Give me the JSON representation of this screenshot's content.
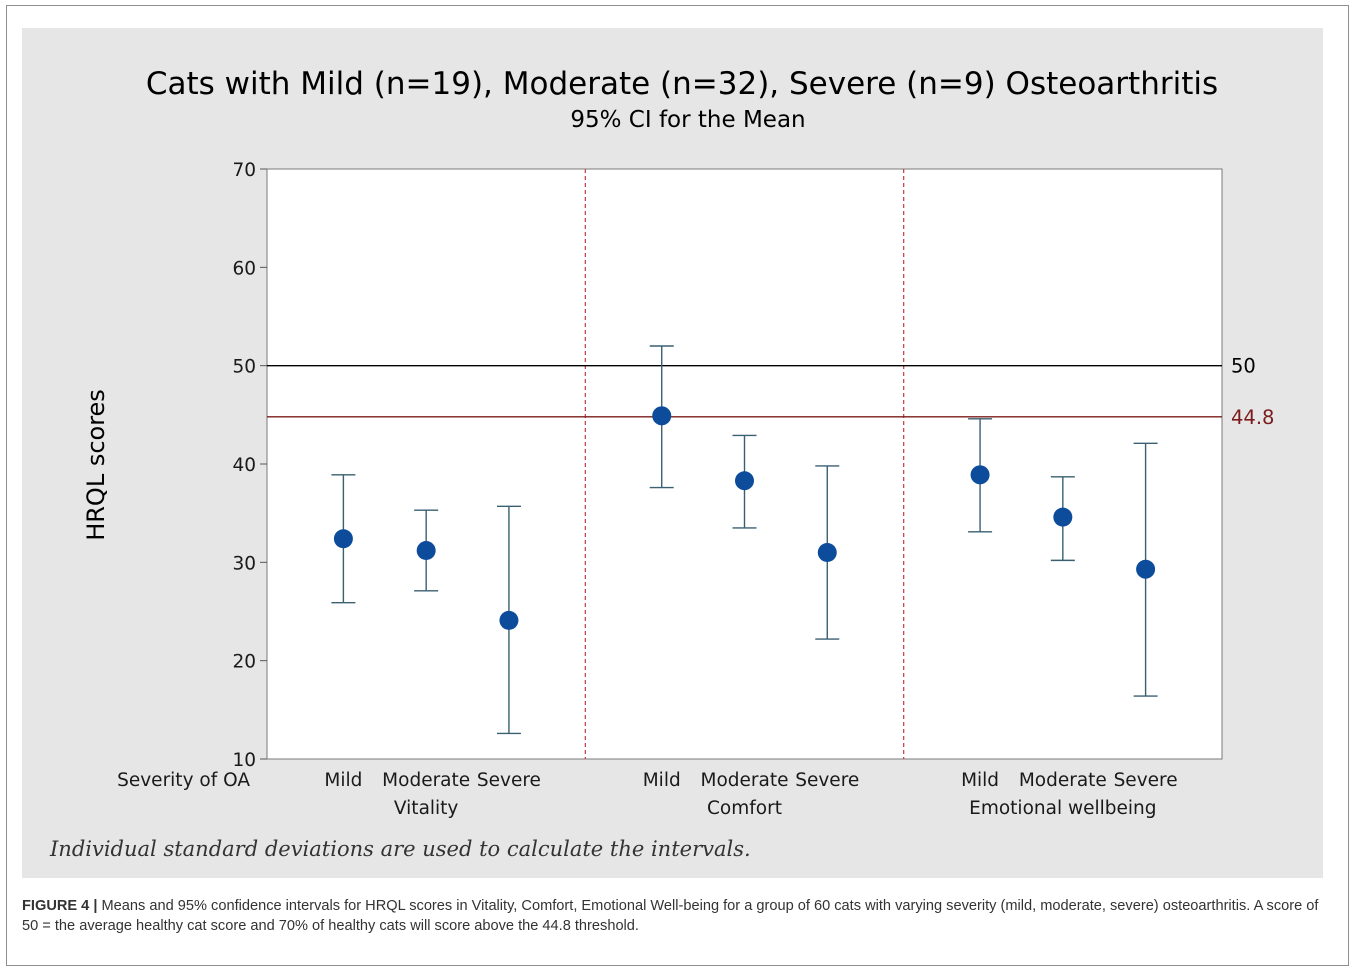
{
  "caption": {
    "lead": "FIGURE 4 |",
    "text": "Means and 95% confidence intervals for HRQL scores in Vitality, Comfort, Emotional Well-being for a group of 60 cats with varying severity (mild, moderate, severe) osteoarthritis. A score of 50 = the average healthy cat score and 70% of healthy cats will score above the 44.8 threshold."
  },
  "colors": {
    "panel_background": "#e6e6e6",
    "plot_background": "#ffffff",
    "marker": "#0d4b9b",
    "error_bar": "#3a5f70",
    "reference_50": "#000000",
    "reference_44_8": "#7b1c1c",
    "divider": "#c44b4b"
  },
  "chart_data": {
    "type": "scatter",
    "title": "Cats with Mild (n=19), Moderate (n=32), Severe (n=9) Osteoarthritis",
    "subtitle": "95% CI for the Mean",
    "ylabel": "HRQL scores",
    "ylim": [
      10,
      70
    ],
    "yticks": [
      10,
      20,
      30,
      40,
      50,
      60,
      70
    ],
    "x_axis_row_label": "Severity of OA",
    "grid": false,
    "footnote": "Individual standard deviations are used to calculate the intervals.",
    "reference_lines": [
      {
        "value": 50,
        "label": "50",
        "color": "#000000"
      },
      {
        "value": 44.8,
        "label": "44.8",
        "color": "#7b1c1c"
      }
    ],
    "groups": [
      {
        "name": "Vitality",
        "points": [
          {
            "category": "Mild",
            "mean": 32.4,
            "lower": 25.9,
            "upper": 38.9
          },
          {
            "category": "Moderate",
            "mean": 31.2,
            "lower": 27.1,
            "upper": 35.3
          },
          {
            "category": "Severe",
            "mean": 24.1,
            "lower": 12.6,
            "upper": 35.7
          }
        ]
      },
      {
        "name": "Comfort",
        "points": [
          {
            "category": "Mild",
            "mean": 44.9,
            "lower": 37.6,
            "upper": 52.0
          },
          {
            "category": "Moderate",
            "mean": 38.3,
            "lower": 33.5,
            "upper": 42.9
          },
          {
            "category": "Severe",
            "mean": 31.0,
            "lower": 22.2,
            "upper": 39.8
          }
        ]
      },
      {
        "name": "Emotional wellbeing",
        "points": [
          {
            "category": "Mild",
            "mean": 38.9,
            "lower": 33.1,
            "upper": 44.6
          },
          {
            "category": "Moderate",
            "mean": 34.6,
            "lower": 30.2,
            "upper": 38.7
          },
          {
            "category": "Severe",
            "mean": 29.3,
            "lower": 16.4,
            "upper": 42.1
          }
        ]
      }
    ]
  }
}
